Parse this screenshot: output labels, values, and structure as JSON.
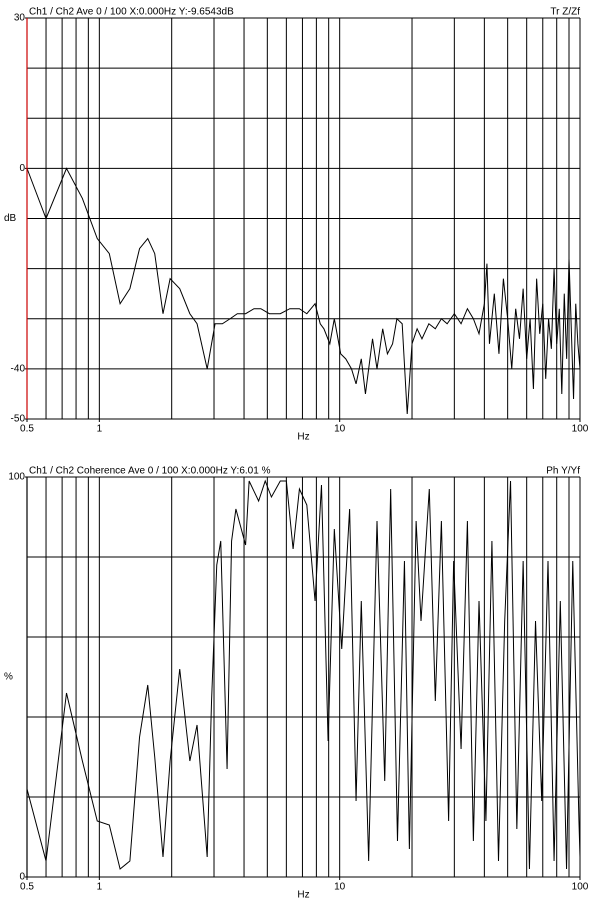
{
  "chart_data": [
    {
      "type": "line",
      "title": "Ch1 / Ch2  Ave 0 / 100  X:0.000Hz  Y:-9.6543dB",
      "trace_label": "Tr Z/Zf",
      "xlabel": "Hz",
      "ylabel": "dB",
      "log_x": true,
      "color": "#000000",
      "axis_color": "#cc0000",
      "xlim": [
        0.5,
        100
      ],
      "xticks": [
        0.5,
        1,
        10,
        100
      ],
      "xgrid": [
        0.6,
        0.7,
        0.8,
        0.9,
        1,
        2,
        3,
        4,
        5,
        6,
        7,
        8,
        9,
        10,
        20,
        30,
        40,
        50,
        60,
        70,
        80,
        90
      ],
      "ylim": [
        -50,
        30
      ],
      "yticks": [
        30,
        0,
        -40,
        -50
      ],
      "ygrid": [
        20,
        10,
        0,
        -10,
        -20,
        -30,
        -40
      ],
      "x": [
        0.5,
        0.6,
        0.73,
        0.85,
        0.98,
        1.1,
        1.22,
        1.34,
        1.47,
        1.59,
        1.7,
        1.84,
        1.97,
        2.16,
        2.38,
        2.55,
        2.81,
        3.03,
        3.25,
        3.5,
        3.75,
        4.06,
        4.4,
        4.7,
        5.1,
        5.66,
        6.2,
        6.8,
        7.3,
        7.9,
        8.3,
        8.6,
        9.1,
        9.5,
        10.1,
        10.6,
        11.2,
        11.7,
        12.3,
        12.8,
        13.7,
        14.3,
        15.1,
        15.8,
        16.6,
        17.3,
        18.2,
        19.1,
        20,
        21,
        22,
        23.5,
        25,
        26.5,
        28,
        30,
        32,
        34,
        36,
        38,
        40,
        41,
        42,
        44,
        46,
        48,
        50,
        52,
        54,
        56,
        58,
        60,
        62,
        64,
        66,
        68,
        70,
        72,
        74,
        76,
        78,
        80,
        82,
        84,
        86,
        88,
        90,
        92,
        94,
        96,
        98,
        100
      ],
      "values": [
        0,
        -10,
        0,
        -6,
        -14,
        -17,
        -27,
        -24,
        -16,
        -14,
        -17,
        -29,
        -22,
        -24,
        -29,
        -31,
        -40,
        -31,
        -31,
        -30,
        -29,
        -29,
        -28,
        -28,
        -29,
        -29,
        -28,
        -28,
        -29,
        -27,
        -31,
        -32,
        -35,
        -30,
        -37,
        -38,
        -40,
        -43,
        -38,
        -45,
        -34,
        -40,
        -32,
        -37,
        -35,
        -30,
        -31,
        -49,
        -35,
        -32,
        -34,
        -31,
        -32,
        -30,
        -31,
        -29,
        -31,
        -28,
        -30,
        -33,
        -27,
        -19,
        -35,
        -25,
        -37,
        -22,
        -30,
        -40,
        -28,
        -34,
        -24,
        -38,
        -30,
        -44,
        -22,
        -33,
        -27,
        -42,
        -30,
        -36,
        -20,
        -35,
        -28,
        -45,
        -25,
        -38,
        -18,
        -32,
        -46,
        -27,
        -35,
        -40
      ]
    },
    {
      "type": "line",
      "title": "Ch1 / Ch2  Coherence Ave 0 / 100  X:0.000Hz  Y:6.01 %",
      "trace_label": "Ph Y/Yf",
      "xlabel": "Hz",
      "ylabel": "%",
      "log_x": true,
      "color": "#000000",
      "axis_color": "#000000",
      "xlim": [
        0.5,
        100
      ],
      "xticks": [
        0.5,
        1,
        10,
        100
      ],
      "xgrid": [
        0.6,
        0.7,
        0.8,
        0.9,
        1,
        2,
        3,
        4,
        5,
        6,
        7,
        8,
        9,
        10,
        20,
        30,
        40,
        50,
        60,
        70,
        80,
        90
      ],
      "ylim": [
        0,
        100
      ],
      "yticks": [
        100,
        0
      ],
      "ygrid": [
        80,
        60,
        40,
        20
      ],
      "x": [
        0.5,
        0.6,
        0.73,
        0.85,
        0.98,
        1.1,
        1.22,
        1.34,
        1.47,
        1.59,
        1.7,
        1.84,
        1.97,
        2.16,
        2.38,
        2.55,
        2.81,
        2.93,
        3.08,
        3.2,
        3.4,
        3.55,
        3.7,
        4.06,
        4.2,
        4.6,
        4.9,
        5.2,
        5.66,
        6.0,
        6.4,
        6.8,
        7.3,
        7.9,
        8.4,
        8.95,
        9.5,
        10.2,
        11,
        11.7,
        12.3,
        13.2,
        14.3,
        15.4,
        16.3,
        17.4,
        18.6,
        19.5,
        20.8,
        21.8,
        23.6,
        25,
        26.5,
        28.4,
        29.8,
        32,
        34,
        36,
        38,
        40.6,
        43,
        45.8,
        48.6,
        51.4,
        54.6,
        58,
        61.6,
        65.3,
        69.3,
        73.6,
        78,
        82.8,
        87.9,
        93.3,
        99,
        100
      ],
      "values": [
        22,
        4,
        46,
        29,
        14,
        13,
        2,
        4,
        35,
        48,
        30,
        5,
        29,
        52,
        29,
        38,
        5,
        44,
        78,
        84,
        27,
        84,
        92,
        83,
        99,
        94,
        99,
        95,
        99,
        99,
        82,
        97,
        93,
        69,
        98,
        34,
        87,
        57,
        92,
        19,
        69,
        4,
        89,
        24,
        97,
        9,
        79,
        7,
        89,
        64,
        97,
        44,
        89,
        14,
        79,
        32,
        89,
        9,
        69,
        14,
        84,
        4,
        64,
        99,
        12,
        79,
        2,
        64,
        19,
        79,
        4,
        69,
        2,
        79,
        14,
        5
      ]
    }
  ]
}
